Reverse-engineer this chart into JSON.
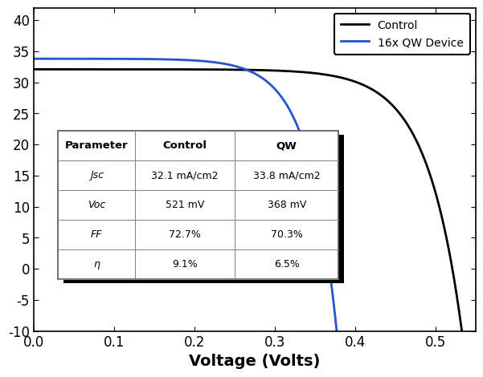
{
  "xlabel": "Voltage (Volts)",
  "xlim": [
    0.0,
    0.55
  ],
  "ylim": [
    -10,
    42
  ],
  "yticks": [
    -10,
    -5,
    0,
    5,
    10,
    15,
    20,
    25,
    30,
    35,
    40
  ],
  "xticks": [
    0.0,
    0.1,
    0.2,
    0.3,
    0.4,
    0.5
  ],
  "control_color": "#000000",
  "qw_color": "#2255cc",
  "legend_labels": [
    "Control",
    "16x QW Device"
  ],
  "table_header": [
    "Parameter",
    "Control",
    "QW"
  ],
  "table_rows": [
    [
      "Jsc",
      "32.1 mA/cm2",
      "33.8 mA/cm2"
    ],
    [
      "Voc",
      "521 mV",
      "368 mV"
    ],
    [
      "FF",
      "72.7%",
      "70.3%"
    ],
    [
      "η",
      "9.1%",
      "6.5%"
    ]
  ],
  "table_italic_col0": true,
  "control_jsc": 32.1,
  "control_voc": 0.521,
  "control_ff": 0.727,
  "qw_jsc": 33.8,
  "qw_voc": 0.368,
  "qw_ff": 0.703,
  "bg_color": "#ffffff"
}
